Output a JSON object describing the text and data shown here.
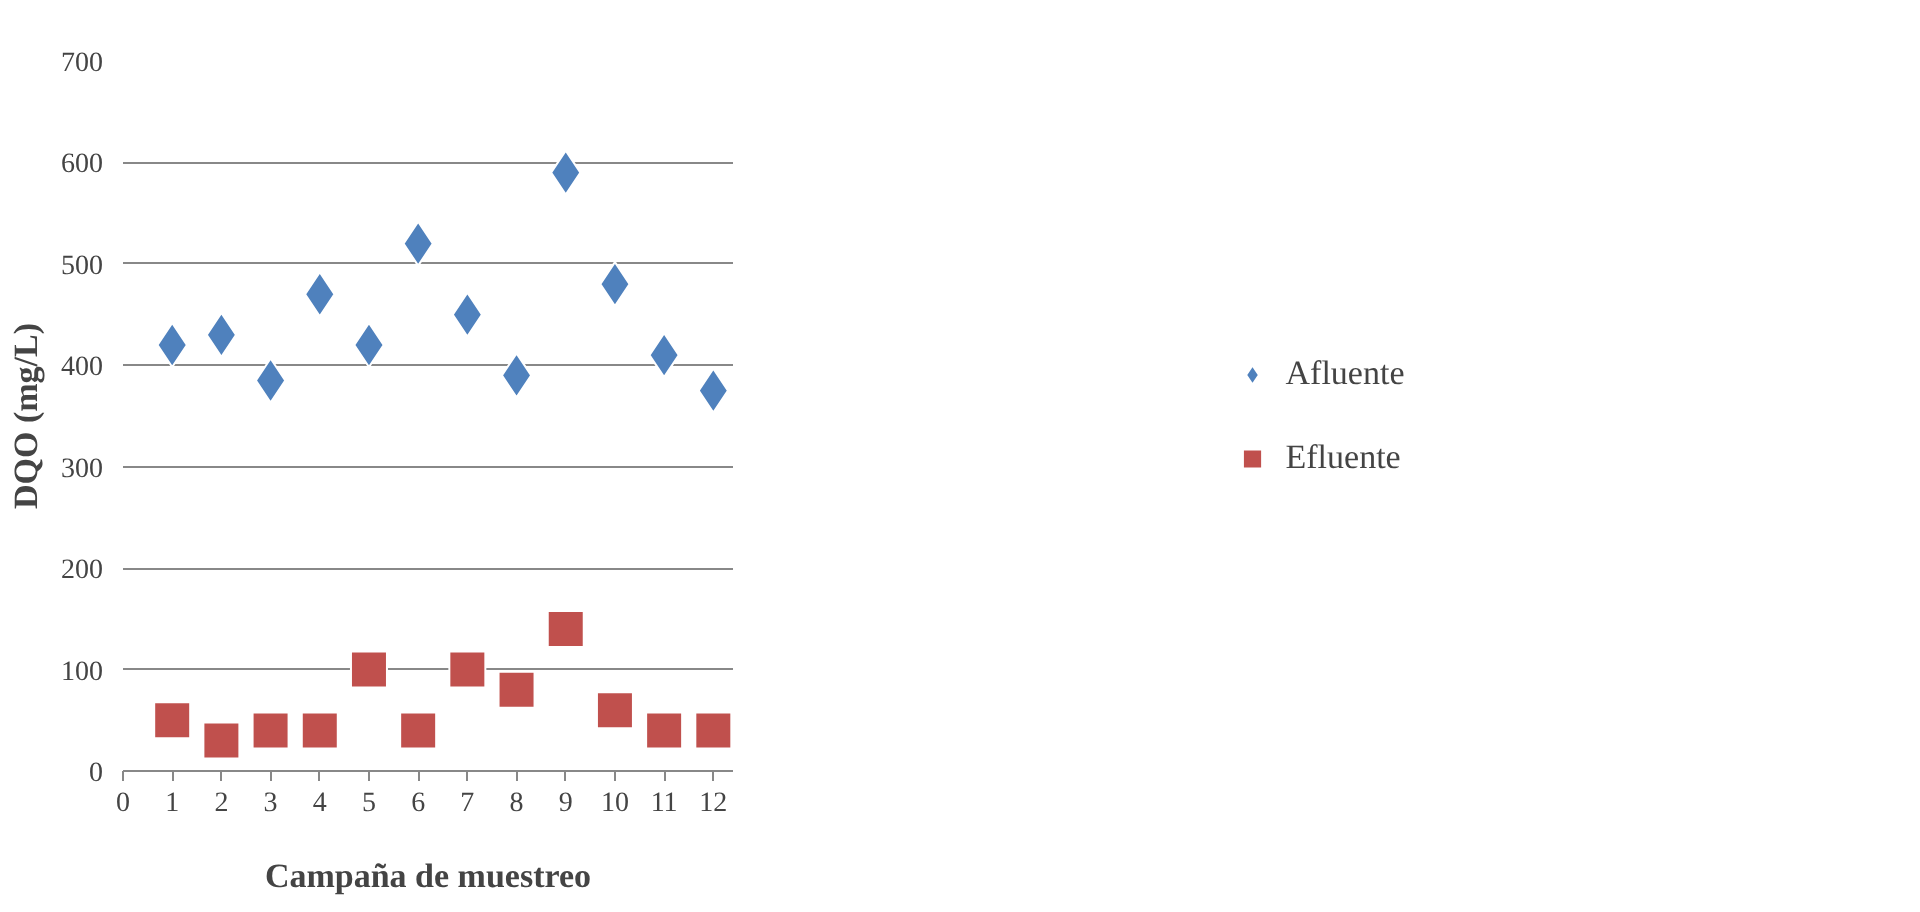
{
  "chart_data": {
    "type": "scatter",
    "xlabel": "Campaña de muestreo",
    "ylabel": "DQO (mg/L)",
    "x": [
      1,
      2,
      3,
      4,
      5,
      6,
      7,
      8,
      9,
      10,
      11,
      12
    ],
    "series": [
      {
        "name": "Afluente",
        "color": "#4f81bd",
        "marker": "diamond",
        "values": [
          420,
          430,
          385,
          470,
          420,
          520,
          450,
          390,
          590,
          480,
          410,
          375
        ]
      },
      {
        "name": "Efluente",
        "color": "#c0504d",
        "marker": "square",
        "values": [
          50,
          30,
          40,
          40,
          100,
          40,
          100,
          80,
          140,
          60,
          40,
          40
        ]
      }
    ],
    "xlim": [
      0,
      12.4
    ],
    "xticks": [
      0,
      1,
      2,
      3,
      4,
      5,
      6,
      7,
      8,
      9,
      10,
      11,
      12
    ],
    "ylim": [
      0,
      700
    ],
    "yticks": [
      0,
      100,
      200,
      300,
      400,
      500,
      600,
      700
    ],
    "grid": "y",
    "legend": "right"
  }
}
